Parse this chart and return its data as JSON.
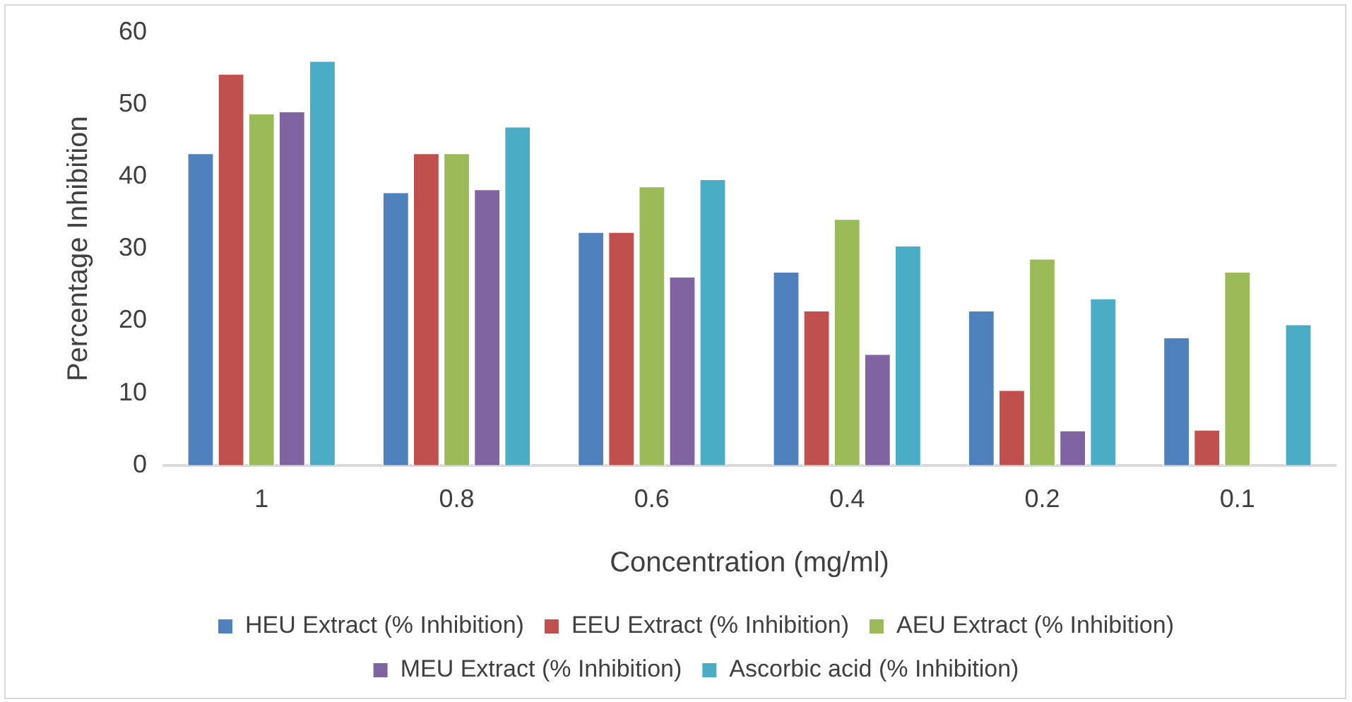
{
  "chart_data": {
    "type": "bar",
    "xlabel": "Concentration (mg/ml)",
    "ylabel": "Percentage Inhibition",
    "categories": [
      "1",
      "0.8",
      "0.6",
      "0.4",
      "0.2",
      "0.1"
    ],
    "series": [
      {
        "name": "HEU Extract (% Inhibition)",
        "color": "#4f81bd",
        "values": [
          43.3,
          37.9,
          32.4,
          26.9,
          21.5,
          17.8
        ]
      },
      {
        "name": "EEU Extract (% Inhibition)",
        "color": "#c0504d",
        "values": [
          54.3,
          43.3,
          32.4,
          21.5,
          10.5,
          5.0
        ]
      },
      {
        "name": "AEU Extract (% Inhibition)",
        "color": "#9bbb59",
        "values": [
          48.8,
          43.3,
          38.7,
          34.2,
          28.7,
          26.9
        ]
      },
      {
        "name": "MEU Extract (% Inhibition)",
        "color": "#8064a2",
        "values": [
          49.1,
          38.3,
          26.2,
          15.5,
          4.9,
          null
        ]
      },
      {
        "name": "Ascorbic acid (% Inhibition)",
        "color": "#4bacc6",
        "values": [
          56.1,
          47.0,
          39.7,
          30.5,
          23.2,
          19.6
        ]
      }
    ],
    "ylim": [
      0,
      60
    ],
    "yticks": [
      0,
      10,
      20,
      30,
      40,
      50,
      60
    ],
    "grid": false,
    "legend": "bottom"
  }
}
